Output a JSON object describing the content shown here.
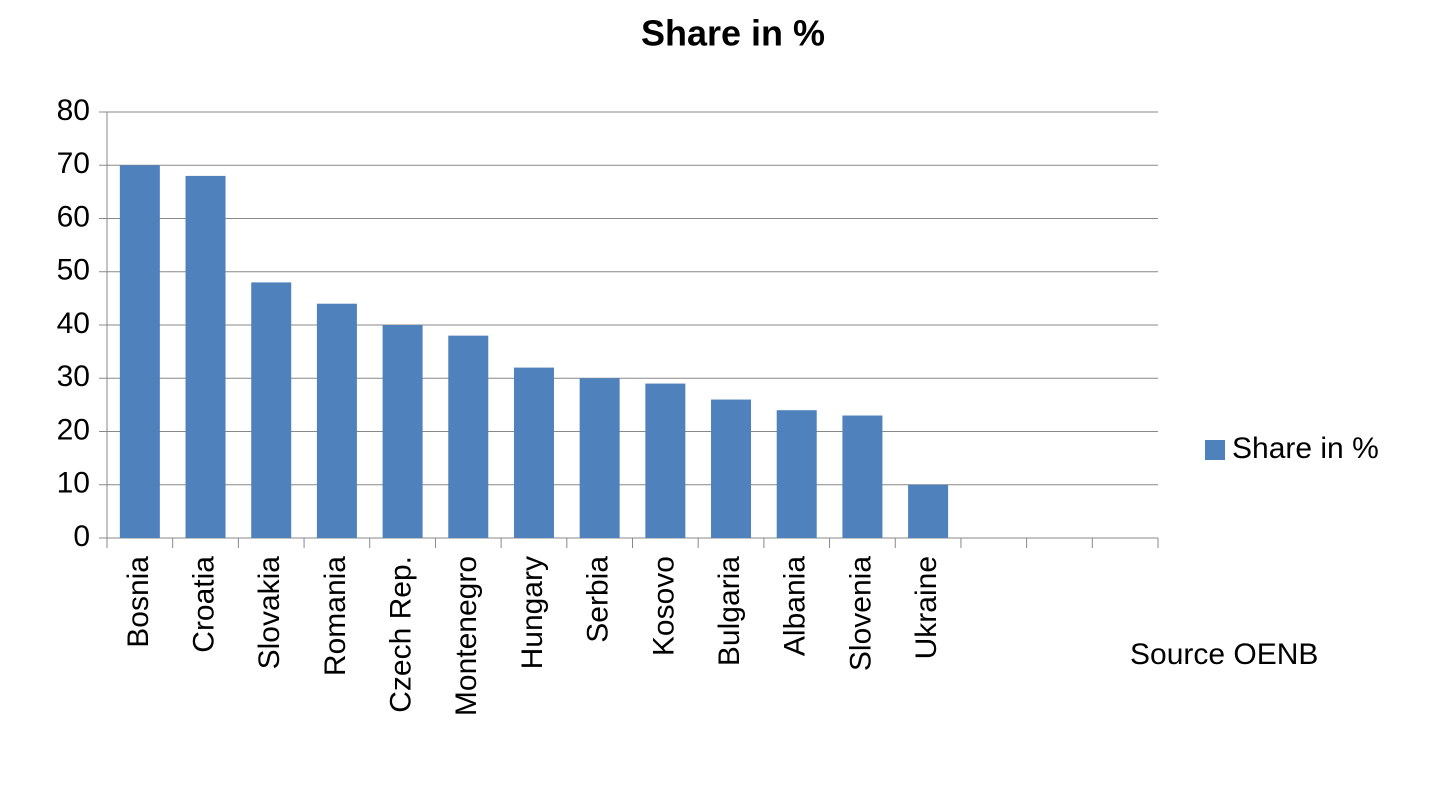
{
  "chart_data": {
    "type": "bar",
    "title": "Share in %",
    "categories": [
      "Bosnia",
      "Croatia",
      "Slovakia",
      "Romania",
      "Czech Rep.",
      "Montenegro",
      "Hungary",
      "Serbia",
      "Kosovo",
      "Bulgaria",
      "Albania",
      "Slovenia",
      "Ukraine",
      null,
      null,
      null
    ],
    "series": [
      {
        "name": "Share in %",
        "color": "#4f81bd",
        "values": [
          70,
          68,
          48,
          44,
          40,
          38,
          32,
          30,
          29,
          26,
          24,
          23,
          10,
          null,
          null,
          null
        ]
      }
    ],
    "ylim": [
      0,
      80
    ],
    "yticks": [
      0,
      10,
      20,
      30,
      40,
      50,
      60,
      70,
      80
    ],
    "grid": true,
    "legend": "right",
    "annotation": "Source OENB"
  }
}
